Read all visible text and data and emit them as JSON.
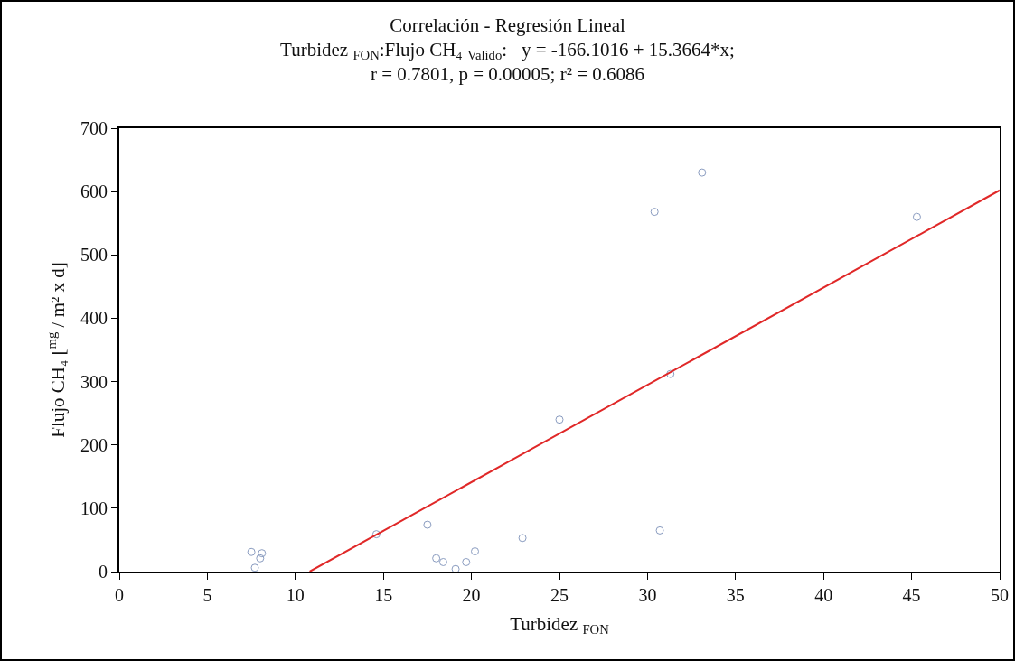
{
  "chart_data": {
    "type": "scatter",
    "title": "Correlación - Regresión Lineal",
    "subtitle": "Turbidez $_{FON}$:Flujo CH₄ $_{Valido}$:   y = -166.1016 + 15.3664*x;",
    "annotations": [
      "r = 0.7801, p = 0.00005; r² = 0.6086"
    ],
    "xlabel": "Turbidez $_{FON}$",
    "ylabel": "Flujo CH₄ [$^{mg}$ / m² x d]",
    "xlim": [
      0,
      50
    ],
    "xticks": [
      0,
      5,
      10,
      15,
      20,
      25,
      30,
      35,
      40,
      45,
      50
    ],
    "ylim": [
      0,
      700
    ],
    "yticks": [
      0,
      100,
      200,
      300,
      400,
      500,
      600,
      700
    ],
    "grid": false,
    "legend": false,
    "series": [
      {
        "marker": "circle",
        "color": "#8a9cc0",
        "x": [
          7.5,
          8.1,
          8.0,
          7.7,
          14.6,
          17.5,
          18.0,
          18.4,
          19.1,
          19.7,
          20.2,
          22.9,
          25.0,
          30.7,
          31.3,
          33.1,
          30.4,
          45.3
        ],
        "values": [
          31,
          29,
          21,
          6,
          59,
          74,
          21,
          15,
          4,
          15,
          32,
          53,
          240,
          65,
          312,
          630,
          568,
          560
        ]
      },
      {
        "type": "line",
        "color": "#e02828",
        "x": [
          10.81,
          50
        ],
        "values": [
          0,
          602
        ]
      }
    ]
  }
}
